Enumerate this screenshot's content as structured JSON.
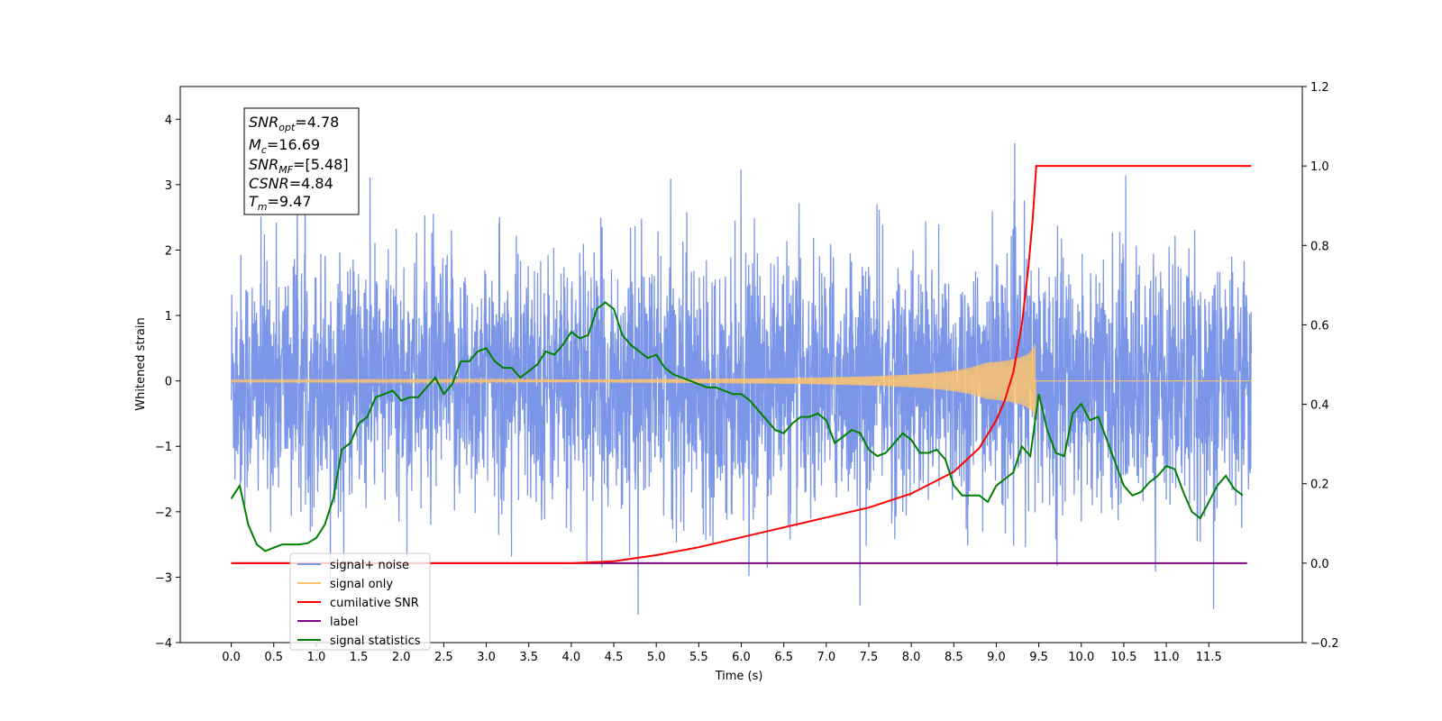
{
  "chart_data": {
    "type": "line",
    "title": "",
    "xlabel": "Time (s)",
    "ylabel": "Whitened strain",
    "xlim": [
      -0.6,
      12.6
    ],
    "ylim": [
      -4,
      4.5
    ],
    "y2lim": [
      -0.2,
      1.2
    ],
    "grid": false,
    "legend_position": "lower-left",
    "x_ticks": [
      "0.0",
      "0.5",
      "1.0",
      "1.5",
      "2.0",
      "2.5",
      "3.0",
      "3.5",
      "4.0",
      "4.5",
      "5.0",
      "5.5",
      "6.0",
      "6.5",
      "7.0",
      "7.5",
      "8.0",
      "8.5",
      "9.0",
      "9.5",
      "10.0",
      "10.5",
      "11.0",
      "11.5"
    ],
    "y_ticks": [
      "−4",
      "−3",
      "−2",
      "−1",
      "0",
      "1",
      "2",
      "3",
      "4"
    ],
    "y2_ticks": [
      "−0.2",
      "0.0",
      "0.2",
      "0.4",
      "0.6",
      "0.8",
      "1.0",
      "1.2"
    ],
    "annotation": {
      "snr_opt": {
        "base": "SNR",
        "sub": "opt",
        "value": "=4.78"
      },
      "mc": {
        "base": "M",
        "sub": "c",
        "value": "=16.69"
      },
      "snr_mf": {
        "base": "SNR",
        "sub": "MF",
        "value": "=[5.48]"
      },
      "csnr": {
        "base": "CSNR",
        "value": "=4.84"
      },
      "tm": {
        "base": "T",
        "sub": "m",
        "value": "=9.47"
      }
    },
    "series": [
      {
        "name": "signal+ noise",
        "color": "#7b96e8",
        "axis": "left",
        "noise_std": 1.0,
        "x_range": [
          0,
          12
        ]
      },
      {
        "name": "signal only",
        "color": "#ffc46b",
        "axis": "left",
        "chirp_end": 9.47,
        "peak_amplitude": 0.75
      },
      {
        "name": "cumilative SNR",
        "color": "#ff0000",
        "axis": "right",
        "x": [
          0,
          4.0,
          4.5,
          5.0,
          5.5,
          6.0,
          6.5,
          7.0,
          7.5,
          8.0,
          8.5,
          8.8,
          9.0,
          9.1,
          9.2,
          9.3,
          9.38,
          9.43,
          9.47,
          12.0
        ],
        "y": [
          0,
          0.0,
          0.005,
          0.02,
          0.04,
          0.065,
          0.09,
          0.115,
          0.14,
          0.175,
          0.23,
          0.29,
          0.36,
          0.41,
          0.48,
          0.6,
          0.75,
          0.87,
          1.0,
          1.0
        ]
      },
      {
        "name": "label",
        "color": "#800080",
        "axis": "right",
        "x": [
          0,
          11.95
        ],
        "y": [
          0,
          0
        ]
      },
      {
        "name": "signal statistics",
        "color": "#008000",
        "axis": "left",
        "x": [
          0,
          0.1,
          0.2,
          0.3,
          0.4,
          0.5,
          0.6,
          0.7,
          0.8,
          0.9,
          1.0,
          1.1,
          1.2,
          1.3,
          1.4,
          1.5,
          1.6,
          1.7,
          1.8,
          1.9,
          2.0,
          2.1,
          2.2,
          2.3,
          2.4,
          2.5,
          2.6,
          2.7,
          2.8,
          2.9,
          3.0,
          3.1,
          3.2,
          3.3,
          3.4,
          3.5,
          3.6,
          3.7,
          3.8,
          3.9,
          4.0,
          4.1,
          4.2,
          4.3,
          4.4,
          4.5,
          4.6,
          4.7,
          4.8,
          4.9,
          5.0,
          5.1,
          5.2,
          5.3,
          5.4,
          5.5,
          5.6,
          5.7,
          5.8,
          5.9,
          6.0,
          6.1,
          6.2,
          6.3,
          6.4,
          6.5,
          6.6,
          6.7,
          6.8,
          6.9,
          7.0,
          7.1,
          7.2,
          7.3,
          7.4,
          7.5,
          7.6,
          7.7,
          7.8,
          7.9,
          8.0,
          8.1,
          8.2,
          8.3,
          8.4,
          8.5,
          8.6,
          8.7,
          8.8,
          8.9,
          9.0,
          9.1,
          9.2,
          9.3,
          9.4,
          9.5,
          9.6,
          9.7,
          9.8,
          9.9,
          10.0,
          10.1,
          10.2,
          10.3,
          10.4,
          10.5,
          10.6,
          10.7,
          10.8,
          10.9,
          11.0,
          11.1,
          11.2,
          11.3,
          11.4,
          11.5,
          11.6,
          11.7,
          11.8,
          11.9
        ],
        "y": [
          -1.8,
          -1.6,
          -2.2,
          -2.5,
          -2.6,
          -2.55,
          -2.5,
          -2.5,
          -2.5,
          -2.48,
          -2.4,
          -2.2,
          -1.8,
          -1.05,
          -0.95,
          -0.65,
          -0.55,
          -0.25,
          -0.2,
          -0.15,
          -0.3,
          -0.25,
          -0.25,
          -0.1,
          0.05,
          -0.2,
          -0.05,
          0.3,
          0.3,
          0.45,
          0.5,
          0.3,
          0.2,
          0.2,
          0.05,
          0.15,
          0.25,
          0.45,
          0.4,
          0.55,
          0.75,
          0.65,
          0.7,
          1.1,
          1.2,
          1.1,
          0.7,
          0.55,
          0.45,
          0.35,
          0.4,
          0.2,
          0.1,
          0.05,
          0.0,
          -0.05,
          -0.1,
          -0.1,
          -0.15,
          -0.2,
          -0.2,
          -0.3,
          -0.45,
          -0.6,
          -0.75,
          -0.8,
          -0.65,
          -0.55,
          -0.55,
          -0.5,
          -0.6,
          -0.95,
          -0.85,
          -0.75,
          -0.8,
          -1.05,
          -1.15,
          -1.1,
          -0.95,
          -0.8,
          -0.9,
          -1.1,
          -1.1,
          -1.05,
          -1.2,
          -1.6,
          -1.75,
          -1.75,
          -1.75,
          -1.85,
          -1.6,
          -1.5,
          -1.4,
          -1.0,
          -1.15,
          -0.2,
          -0.75,
          -1.1,
          -1.15,
          -0.5,
          -0.35,
          -0.6,
          -0.55,
          -0.9,
          -1.25,
          -1.6,
          -1.75,
          -1.7,
          -1.55,
          -1.45,
          -1.3,
          -1.35,
          -1.7,
          -2.0,
          -2.1,
          -1.85,
          -1.6,
          -1.45,
          -1.65,
          -1.75
        ]
      }
    ]
  }
}
